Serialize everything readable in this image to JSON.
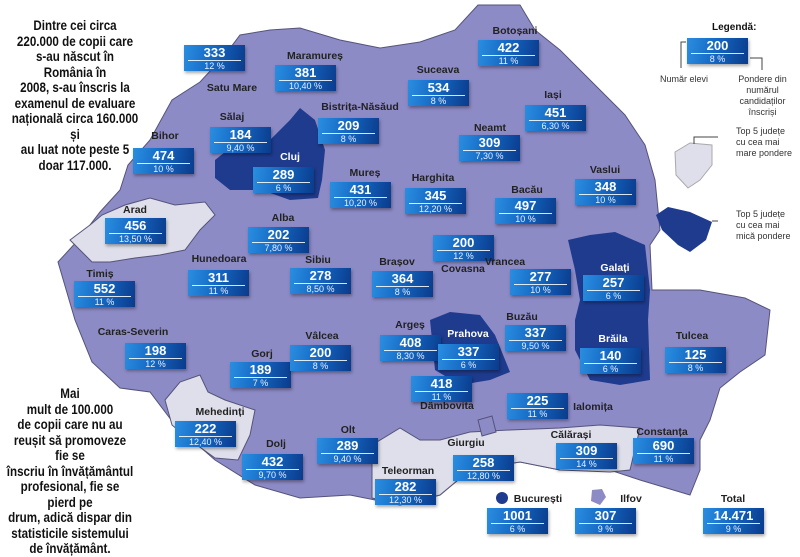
{
  "intro_text": "Dintre cei circa\n220.000 de copii care\ns-au născut în România în\n2008, s-au înscris la\nexamenul de evaluare\nnațională circa 160.000 și\nau luat note peste 5\ndoar 117.000.",
  "outro_text": "Mai\nmult de 100.000\nde copii care nu au\nreușit să promoveze fie se\nînscriu în învățământul\nprofesional, fie se pierd pe\ndrum, adică dispar din\nstatisticile sistemului\nde învățământ.",
  "legend": {
    "title": "Legendă:",
    "sample_count": "200",
    "sample_pct": "8 %",
    "count_label": "Număr elevi",
    "pct_label": "Pondere din numărul\ncandidaților înscriși",
    "top_high": "Top 5 județe\ncu cea mai\nmare pondere",
    "top_low": "Top 5 județe\ncu cea mai\nmică pondere"
  },
  "colors": {
    "base": "#8d8bc6",
    "high": "#dedfea",
    "low": "#1f3b8e",
    "box": "#1569c4"
  },
  "counties": [
    {
      "name": "Satu Mare",
      "count": "333",
      "pct": "12 %",
      "group": "base"
    },
    {
      "name": "Maramureș",
      "count": "381",
      "pct": "10,40 %",
      "group": "base"
    },
    {
      "name": "Sălaj",
      "count": "184",
      "pct": "9,40 %",
      "group": "base"
    },
    {
      "name": "Bistrița-Năsăud",
      "count": "209",
      "pct": "8 %",
      "group": "base"
    },
    {
      "name": "Bihor",
      "count": "474",
      "pct": "10 %",
      "group": "base"
    },
    {
      "name": "Cluj",
      "count": "289",
      "pct": "6 %",
      "group": "low"
    },
    {
      "name": "Mureș",
      "count": "431",
      "pct": "10,20 %",
      "group": "base"
    },
    {
      "name": "Botoșani",
      "count": "422",
      "pct": "11 %",
      "group": "base"
    },
    {
      "name": "Suceava",
      "count": "534",
      "pct": "8 %",
      "group": "base"
    },
    {
      "name": "Iași",
      "count": "451",
      "pct": "6,30 %",
      "group": "base"
    },
    {
      "name": "Neamt",
      "count": "309",
      "pct": "7,30 %",
      "group": "base"
    },
    {
      "name": "Harghita",
      "count": "345",
      "pct": "12,20 %",
      "group": "base"
    },
    {
      "name": "Bacău",
      "count": "497",
      "pct": "10 %",
      "group": "base"
    },
    {
      "name": "Vaslui",
      "count": "348",
      "pct": "10 %",
      "group": "base"
    },
    {
      "name": "Arad",
      "count": "456",
      "pct": "13,50 %",
      "group": "high"
    },
    {
      "name": "Alba",
      "count": "202",
      "pct": "7,80 %",
      "group": "base"
    },
    {
      "name": "Hunedoara",
      "count": "311",
      "pct": "11 %",
      "group": "base"
    },
    {
      "name": "Sibiu",
      "count": "278",
      "pct": "8,50 %",
      "group": "base"
    },
    {
      "name": "Timiș",
      "count": "552",
      "pct": "11 %",
      "group": "base"
    },
    {
      "name": "Caras-Severin",
      "count": "198",
      "pct": "12 %",
      "group": "base"
    },
    {
      "name": "Gorj",
      "count": "189",
      "pct": "7 %",
      "group": "base"
    },
    {
      "name": "Vâlcea",
      "count": "200",
      "pct": "8 %",
      "group": "base"
    },
    {
      "name": "Argeș",
      "count": "408",
      "pct": "8,30 %",
      "group": "base"
    },
    {
      "name": "Covasna",
      "count": "200",
      "pct": "12 %",
      "group": "base"
    },
    {
      "name": "Brașov",
      "count": "364",
      "pct": "8 %",
      "group": "base"
    },
    {
      "name": "Vrancea",
      "count": "277",
      "pct": "10 %",
      "group": "base"
    },
    {
      "name": "Galați",
      "count": "257",
      "pct": "6 %",
      "group": "low"
    },
    {
      "name": "Buzău",
      "count": "337",
      "pct": "9,50 %",
      "group": "base"
    },
    {
      "name": "Prahova",
      "count": "337",
      "pct": "6 %",
      "group": "low"
    },
    {
      "name": "Brăila",
      "count": "140",
      "pct": "6 %",
      "group": "low"
    },
    {
      "name": "Tulcea",
      "count": "125",
      "pct": "8 %",
      "group": "base"
    },
    {
      "name": "Dâmbovita",
      "count": "418",
      "pct": "11 %",
      "group": "base"
    },
    {
      "name": "Ialomița",
      "count": "225",
      "pct": "11 %",
      "group": "base"
    },
    {
      "name": "Mehedinți",
      "count": "222",
      "pct": "12,40 %",
      "group": "high"
    },
    {
      "name": "Olt",
      "count": "289",
      "pct": "9,40 %",
      "group": "base"
    },
    {
      "name": "Dolj",
      "count": "432",
      "pct": "9,70 %",
      "group": "base"
    },
    {
      "name": "Giurgiu",
      "count": "258",
      "pct": "12,80 %",
      "group": "high"
    },
    {
      "name": "Călărași",
      "count": "309",
      "pct": "14 %",
      "group": "high"
    },
    {
      "name": "Constanța",
      "count": "690",
      "pct": "11 %",
      "group": "base"
    },
    {
      "name": "Teleorman",
      "count": "282",
      "pct": "12,30 %",
      "group": "high"
    }
  ],
  "extras": [
    {
      "name": "București",
      "count": "1001",
      "pct": "6 %",
      "group": "low"
    },
    {
      "name": "Ilfov",
      "count": "307",
      "pct": "9 %",
      "group": "base"
    },
    {
      "name": "Total",
      "count": "14.471",
      "pct": "9 %"
    }
  ]
}
